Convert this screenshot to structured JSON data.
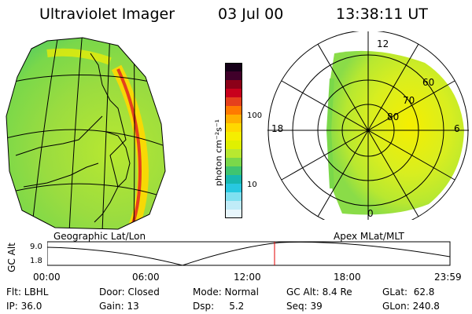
{
  "header": {
    "title": "Ultraviolet Imager",
    "date": "03 Jul 00",
    "time": "13:38:11 UT"
  },
  "colorbar": {
    "unit_label": "photon cm⁻²s⁻¹",
    "ticks": [
      "100",
      "10"
    ],
    "colors_top_to_bottom": [
      "#150018",
      "#40002a",
      "#8b0018",
      "#c8001c",
      "#e5401c",
      "#ff7a00",
      "#ffb000",
      "#ffd800",
      "#f5ee00",
      "#e0f000",
      "#b8e830",
      "#7ad84a",
      "#3fc470",
      "#18b8b0",
      "#28c8e0",
      "#80e0f0",
      "#c0ecf8",
      "#e8f6fc"
    ]
  },
  "labels": {
    "geographic": "Geographic Lat/Lon",
    "apex": "Apex MLat/MLT"
  },
  "polar_plot": {
    "mlt_labels": {
      "top": "12",
      "left": "18",
      "right": "6",
      "bottom": "0"
    },
    "lat_labels": [
      "60",
      "70",
      "80"
    ]
  },
  "altitude_plot": {
    "axis_title": "GC Alt",
    "y_ticks": [
      "9.0",
      "1.8"
    ],
    "x_ticks": [
      "00:00",
      "06:00",
      "12:00",
      "18:00",
      "23:59"
    ],
    "current_time_marker_color": "#e00000"
  },
  "info": {
    "row1": {
      "filter": "Flt: LBHL",
      "door": "Door: Closed",
      "mode": "Mode: Normal",
      "gc_alt": "GC Alt: 8.4 Re",
      "glat": "GLat:  62.8"
    },
    "row2": {
      "ip": "IP: 36.0",
      "gain": "Gain: 13",
      "dsp": "Dsp:     5.2",
      "seq": "Seq: 39",
      "glon": "GLon: 240.8"
    }
  }
}
